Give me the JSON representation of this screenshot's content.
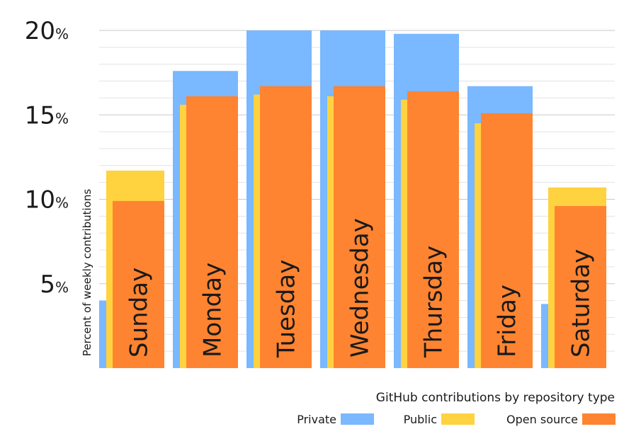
{
  "chart_data": {
    "type": "bar",
    "ylabel": "Percent of weekly contributions",
    "ylim": [
      0,
      20
    ],
    "yticks": [
      {
        "value": 5,
        "num": "5",
        "unit": "%"
      },
      {
        "value": 10,
        "num": "10",
        "unit": "%"
      },
      {
        "value": 15,
        "num": "15",
        "unit": "%"
      },
      {
        "value": 20,
        "num": "20",
        "unit": "%"
      }
    ],
    "grid": true,
    "categories": [
      "Sunday",
      "Monday",
      "Tuesday",
      "Wednesday",
      "Thursday",
      "Friday",
      "Saturday"
    ],
    "series": [
      {
        "name": "Private",
        "color": "#7ab8ff",
        "values": [
          4.0,
          17.6,
          20.0,
          20.0,
          19.8,
          16.7,
          3.8
        ]
      },
      {
        "name": "Public",
        "color": "#ffd23f",
        "values": [
          11.7,
          15.6,
          16.2,
          16.1,
          15.9,
          14.5,
          10.7
        ]
      },
      {
        "name": "Open source",
        "color": "#ff8431",
        "values": [
          9.9,
          16.1,
          16.7,
          16.7,
          16.4,
          15.1,
          9.6
        ]
      }
    ],
    "legend": {
      "title": "GitHub contributions by repository type",
      "position": "bottom-right"
    }
  }
}
